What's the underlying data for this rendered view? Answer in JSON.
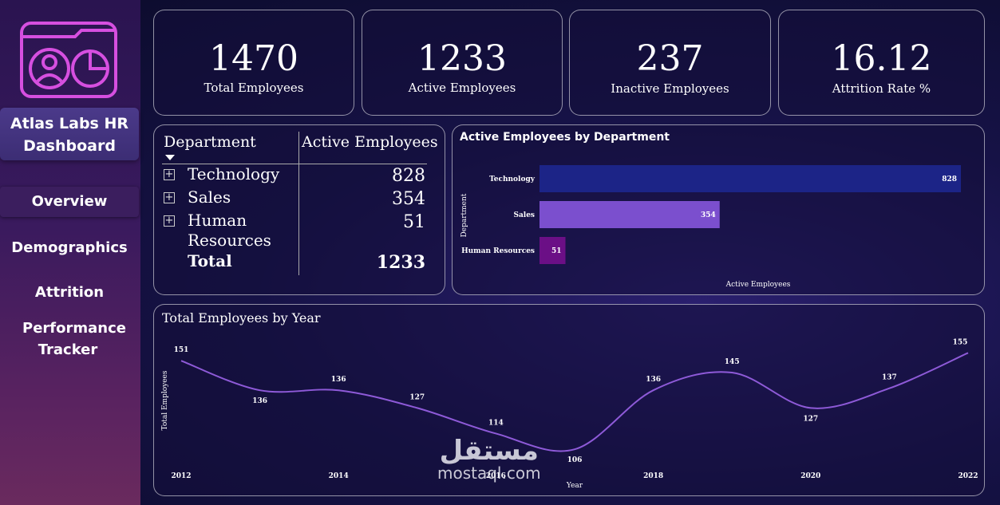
{
  "sidebar": {
    "brand": "Atlas Labs HR Dashboard",
    "items": [
      {
        "label": "Overview",
        "active": true
      },
      {
        "label": "Demographics",
        "active": false
      },
      {
        "label": "Attrition",
        "active": false
      },
      {
        "label": "Performance Tracker",
        "active": false
      }
    ]
  },
  "kpis": [
    {
      "value": "1470",
      "label": "Total Employees"
    },
    {
      "value": "1233",
      "label": "Active Employees"
    },
    {
      "value": "237",
      "label": "Inactive Employees"
    },
    {
      "value": "16.12",
      "label": "Attrition Rate %"
    }
  ],
  "dept_table": {
    "col_department": "Department",
    "col_active": "Active Employees",
    "rows": [
      {
        "name": "Technology",
        "value": "828"
      },
      {
        "name": "Sales",
        "value": "354"
      },
      {
        "name": "Human Resources",
        "value": "51"
      }
    ],
    "total_label": "Total",
    "total_value": "1233"
  },
  "watermark": {
    "arabic": "مستقل",
    "latin": "mostaql.com"
  },
  "colors": {
    "bar_technology": "#1c2487",
    "bar_sales": "#7b4fce",
    "bar_hr": "#6b0f86",
    "line": "#8e5ad8"
  },
  "chart_data": [
    {
      "type": "bar",
      "title": "Active Employees by Department",
      "categories": [
        "Technology",
        "Sales",
        "Human Resources"
      ],
      "values": [
        828,
        354,
        51
      ],
      "xlabel": "Active Employees",
      "ylabel": "Department",
      "xlim": [
        0,
        828
      ]
    },
    {
      "type": "line",
      "title": "Total Employees by Year",
      "x": [
        2012,
        2013,
        2014,
        2015,
        2016,
        2017,
        2018,
        2019,
        2020,
        2021,
        2022
      ],
      "values": [
        151,
        136,
        136,
        127,
        114,
        106,
        136,
        145,
        127,
        137,
        155
      ],
      "tick_labels": [
        "2012",
        "2014",
        "2016",
        "2018",
        "2020",
        "2022"
      ],
      "xlabel": "Year",
      "ylabel": "Total Employees",
      "ylim": [
        100,
        160
      ]
    }
  ]
}
